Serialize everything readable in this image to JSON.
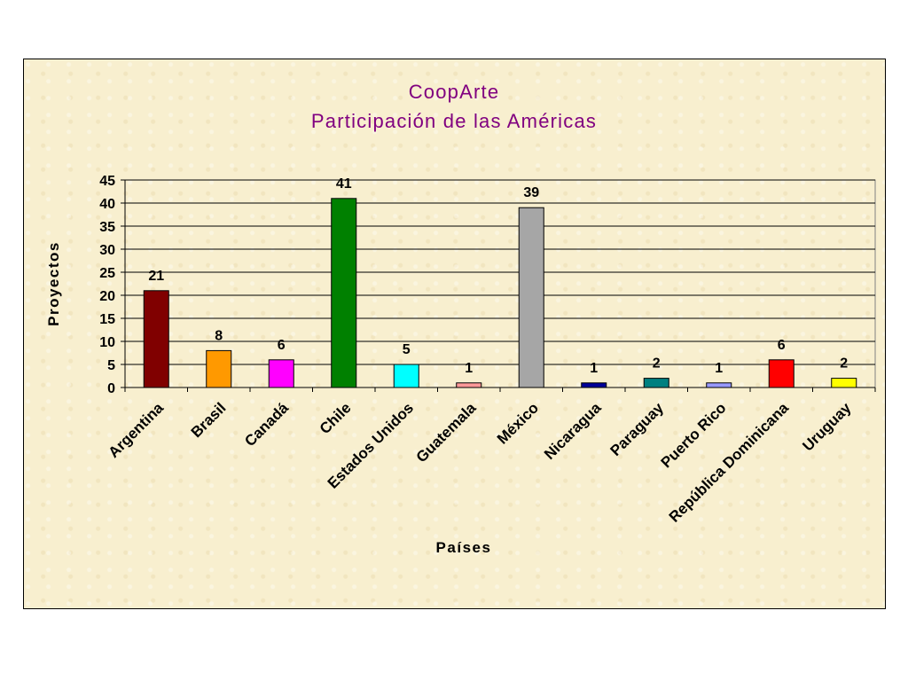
{
  "chart_data": {
    "type": "bar",
    "title": "CoopArte",
    "subtitle": "Participación de las Américas",
    "xlabel": "Países",
    "ylabel": "Proyectos",
    "ylim": [
      0,
      45
    ],
    "yticks": [
      0,
      5,
      10,
      15,
      20,
      25,
      30,
      35,
      40,
      45
    ],
    "grid": true,
    "legend": "none",
    "categories": [
      "Argentina",
      "Brasil",
      "Canadá",
      "Chile",
      "Estados Unidos",
      "Guatemala",
      "México",
      "Nicaragua",
      "Paraguay",
      "Puerto Rico",
      "República Dominicana",
      "Uruguay"
    ],
    "values": [
      21,
      8,
      6,
      41,
      5,
      1,
      39,
      1,
      2,
      1,
      6,
      2
    ],
    "colors": [
      "#800000",
      "#ff9900",
      "#ff00ff",
      "#008000",
      "#00ffff",
      "#ff9999",
      "#a6a6a6",
      "#000099",
      "#008080",
      "#9999ff",
      "#ff0000",
      "#ffff00"
    ]
  }
}
